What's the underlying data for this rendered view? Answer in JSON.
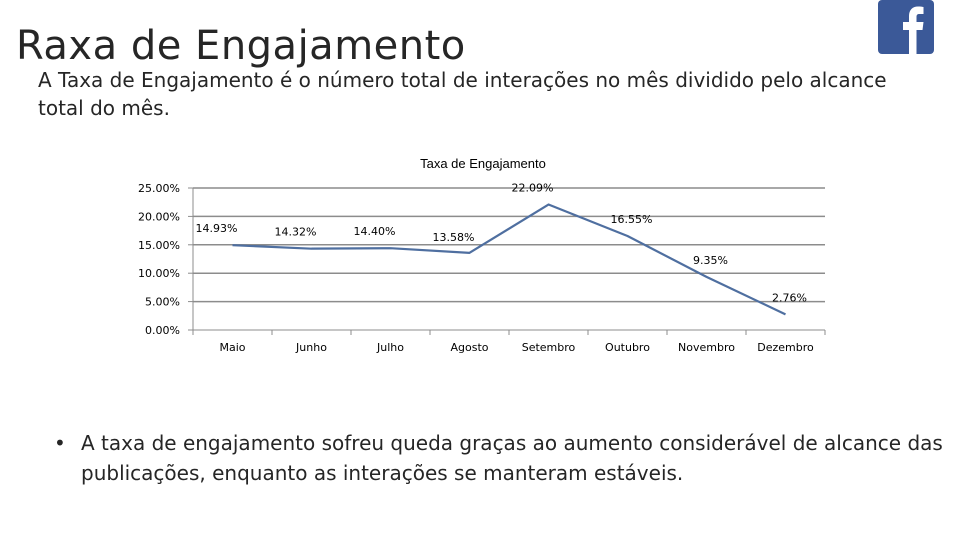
{
  "slide": {
    "title": "Raxa de Engajamento",
    "subtitle": "A Taxa de Engajamento é o número total de interações no mês dividido pelo alcance total do mês.",
    "bullet_symbol": "•",
    "bullet_text": "A taxa de engajamento sofreu queda graças ao aumento considerável de alcance das publicações, enquanto as interações se manteram estáveis.",
    "logo_icon": "facebook-icon"
  },
  "chart_data": {
    "type": "line",
    "title": "Taxa de Engajamento",
    "xlabel": "",
    "ylabel": "",
    "categories": [
      "Maio",
      "Junho",
      "Julho",
      "Agosto",
      "Setembro",
      "Outubro",
      "Novembro",
      "Dezembro"
    ],
    "series": [
      {
        "values": [
          14.93,
          14.32,
          14.4,
          13.58,
          22.09,
          16.55,
          9.35,
          2.76
        ],
        "labels": [
          "14.93%",
          "14.32%",
          "14.40%",
          "13.58%",
          "22.09%",
          "16.55%",
          "9.35%",
          "2.76%"
        ],
        "color": "#4f6fa0"
      }
    ],
    "ylim": [
      0,
      25
    ],
    "yticks": [
      "0.00%",
      "5.00%",
      "10.00%",
      "15.00%",
      "20.00%",
      "25.00%"
    ],
    "grid": true,
    "legend": "none"
  }
}
